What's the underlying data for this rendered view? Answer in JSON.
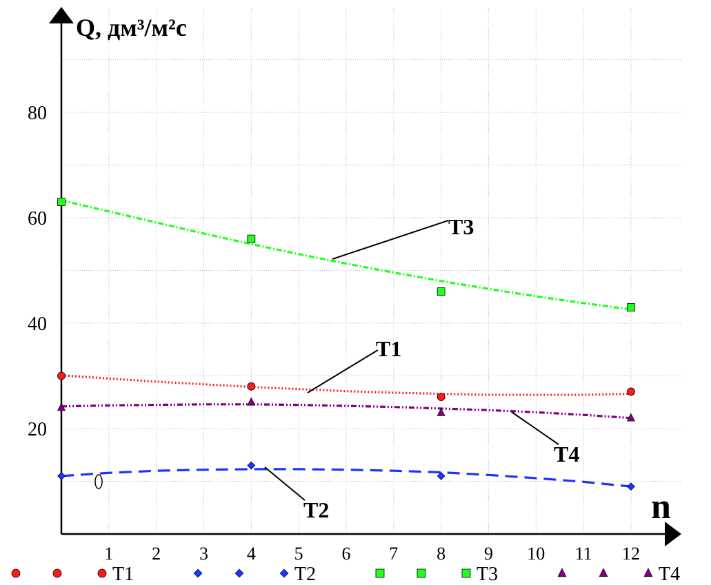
{
  "chart_data": {
    "type": "scatter",
    "ylabel": "Q, дм³/м²с",
    "xlabel": "n",
    "x_ticks": [
      1,
      2,
      3,
      4,
      5,
      6,
      7,
      8,
      9,
      10,
      11,
      12
    ],
    "y_ticks": [
      20,
      40,
      60,
      80
    ],
    "xlim": [
      0,
      13
    ],
    "ylim": [
      0,
      90
    ],
    "grid": true,
    "origin_note": "0",
    "legend_position": "bottom",
    "series": [
      {
        "name": "T1",
        "marker": "circle",
        "color": "#ff1a1a",
        "line_style": "dotted",
        "x": [
          0,
          4,
          8,
          12
        ],
        "y": [
          30,
          28,
          26,
          27
        ],
        "fit": [
          30.1,
          29.5,
          28.9,
          28.4,
          27.9,
          27.5,
          27.1,
          26.8,
          26.6,
          26.4,
          26.4,
          26.4,
          26.6
        ],
        "callout": "T1"
      },
      {
        "name": "T2",
        "marker": "diamond",
        "color": "#1a33ff",
        "line_style": "dashed",
        "x": [
          0,
          4,
          8,
          12
        ],
        "y": [
          11,
          13,
          11,
          9
        ],
        "fit": [
          11,
          11.6,
          12.0,
          12.2,
          12.3,
          12.3,
          12.2,
          12.0,
          11.7,
          11.2,
          10.6,
          9.9,
          9.0
        ],
        "callout": "T2"
      },
      {
        "name": "T3",
        "marker": "square",
        "color": "#22ff22",
        "line_style": "dashdot",
        "x": [
          0,
          4,
          8,
          12
        ],
        "y": [
          63,
          56,
          46,
          43
        ],
        "fit": [
          63.3,
          61.2,
          59.1,
          57.0,
          55.0,
          53.1,
          51.3,
          49.6,
          48.0,
          46.5,
          45.1,
          43.8,
          42.6
        ],
        "callout": "T3"
      },
      {
        "name": "T4",
        "marker": "triangle",
        "color": "#800080",
        "line_style": "dashdotdot",
        "x": [
          0,
          4,
          8,
          12
        ],
        "y": [
          24,
          25,
          23,
          22
        ],
        "fit": [
          24.2,
          24.4,
          24.5,
          24.6,
          24.6,
          24.5,
          24.3,
          24.1,
          23.8,
          23.5,
          23.1,
          22.6,
          22.0
        ],
        "callout": "T4"
      }
    ]
  }
}
